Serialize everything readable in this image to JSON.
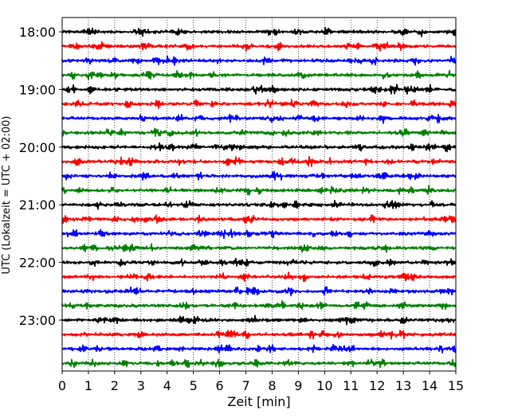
{
  "chart_data": {
    "type": "line",
    "title": "",
    "xlabel": "Zeit  [min]",
    "ylabel": "UTC (Lokalzeit = UTC + 02:00)",
    "xlim": [
      0,
      15
    ],
    "x_ticks": [
      "0",
      "1",
      "2",
      "3",
      "4",
      "5",
      "6",
      "7",
      "8",
      "9",
      "10",
      "11",
      "12",
      "13",
      "14",
      "15"
    ],
    "y_tick_labels": [
      "18:00",
      "19:00",
      "20:00",
      "21:00",
      "22:00",
      "23:00"
    ],
    "y_tick_hours": [
      18,
      19,
      20,
      21,
      22,
      23
    ],
    "trace_interval_minutes": 15,
    "trace_start": "18:00",
    "trace_end": "23:45",
    "trace_colors": [
      "#000000",
      "#ff0000",
      "#0000ff",
      "#008000"
    ],
    "vertical_grid": "dotted",
    "traces": [
      {
        "label": "18:00"
      },
      {
        "label": "18:15"
      },
      {
        "label": "18:30"
      },
      {
        "label": "18:45"
      },
      {
        "label": "19:00"
      },
      {
        "label": "19:15"
      },
      {
        "label": "19:30"
      },
      {
        "label": "19:45"
      },
      {
        "label": "20:00"
      },
      {
        "label": "20:15"
      },
      {
        "label": "20:30"
      },
      {
        "label": "20:45"
      },
      {
        "label": "21:00"
      },
      {
        "label": "21:15"
      },
      {
        "label": "21:30"
      },
      {
        "label": "21:45"
      },
      {
        "label": "22:00"
      },
      {
        "label": "22:15"
      },
      {
        "label": "22:30"
      },
      {
        "label": "22:45"
      },
      {
        "label": "23:00"
      },
      {
        "label": "23:15"
      },
      {
        "label": "23:30"
      },
      {
        "label": "23:45"
      }
    ]
  }
}
